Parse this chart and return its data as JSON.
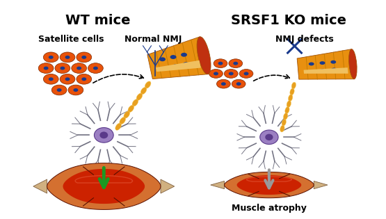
{
  "title_left": "WT mice",
  "title_right": "SRSF1 KO mice",
  "label_satellite": "Satellite cells",
  "label_normal_nmj": "Normal NMJ",
  "label_nmj_defects": "NMJ defects",
  "label_muscle_atrophy": "Muscle atrophy",
  "bg_color": "#ffffff",
  "title_fontsize": 14,
  "label_fontsize": 9,
  "orange_cell": "#e8520a",
  "blue_dot": "#1a3a8c",
  "muscle_red": "#cc2200",
  "muscle_orange": "#d47030",
  "neuron_body": "#9b7fc2",
  "neuron_dark": "#5a3a8a",
  "axon_gold": "#e8a020",
  "axon_light": "#f5d060",
  "tube_orange": "#E89010",
  "tube_dark": "#a05008",
  "tube_red_end": "#c03010",
  "green_arrow": "#1a9922",
  "gray_arrow": "#999999"
}
